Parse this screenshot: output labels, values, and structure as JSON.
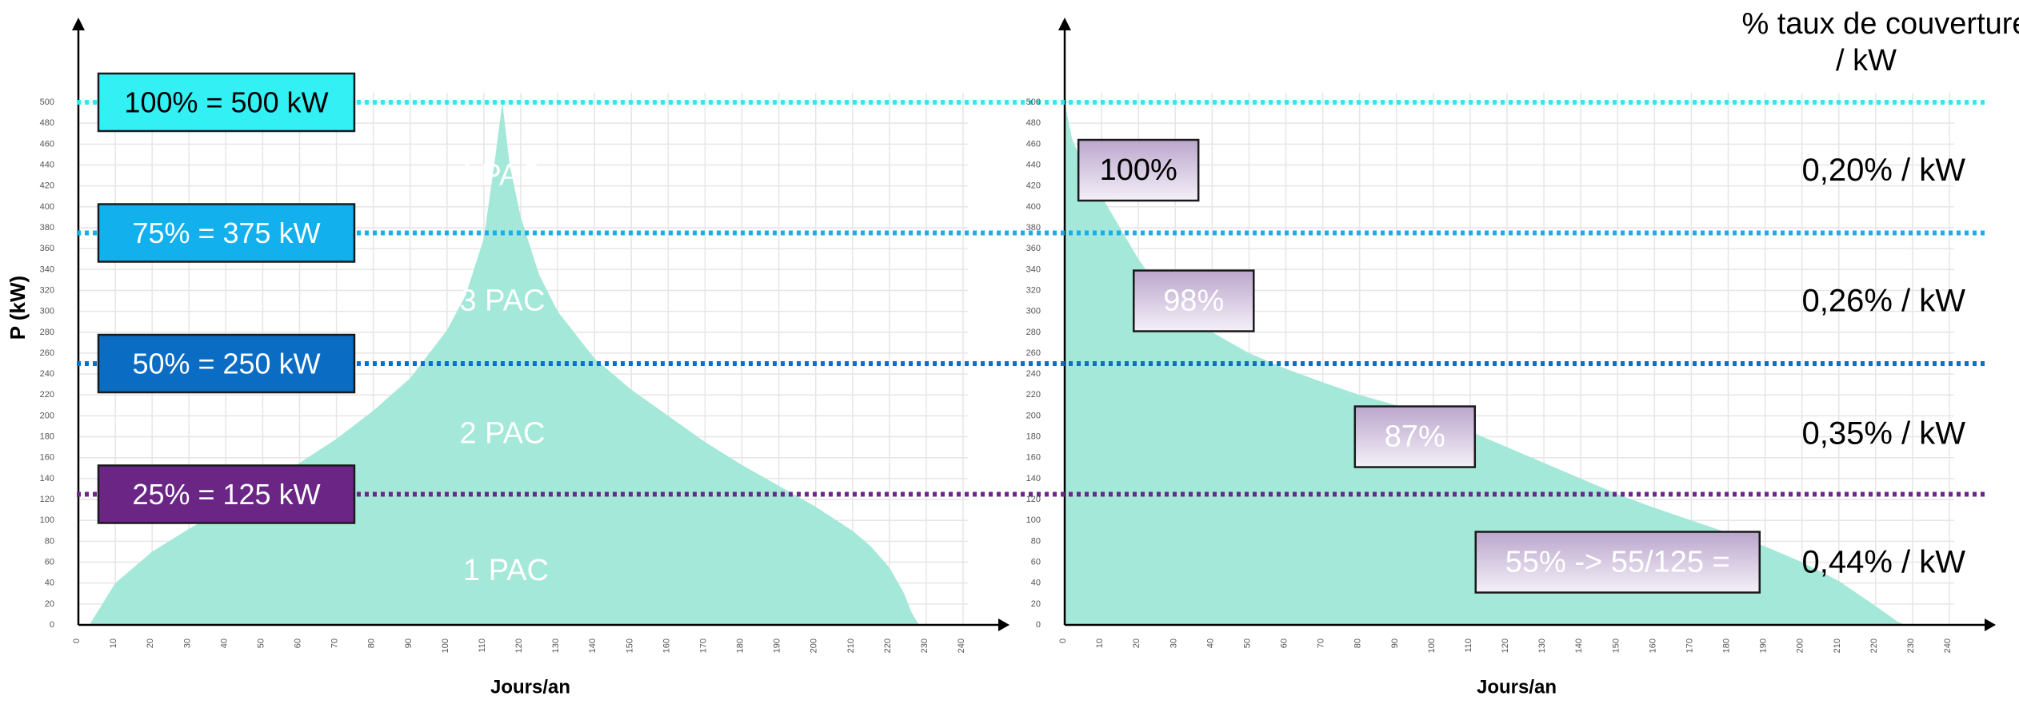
{
  "colors": {
    "area": "#a3e8d8",
    "grid": "#e6e6e6",
    "axis": "#000000",
    "line_100": "#33e6f2",
    "line_75": "#1aaee8",
    "line_50": "#0f6fc4",
    "line_25": "#6b2a86",
    "box_100": "#33f0f5",
    "box_75": "#12b0ec",
    "box_50": "#0a6cc2",
    "box_25": "#6a2585",
    "pct_box_top": "#bba6cc",
    "pct_box_bottom": "#f4f0f8"
  },
  "chart_data": [
    {
      "type": "area",
      "title": "",
      "xlabel": "Jours/an",
      "ylabel": "P (kW)",
      "xlim": [
        0,
        250
      ],
      "ylim": [
        0,
        500
      ],
      "x_ticks": [
        "0",
        "10",
        "20",
        "30",
        "40",
        "50",
        "60",
        "70",
        "80",
        "90",
        "100",
        "110",
        "120",
        "130",
        "140",
        "150",
        "160",
        "170",
        "180",
        "190",
        "200",
        "210",
        "220",
        "230",
        "240"
      ],
      "y_ticks": [
        "0",
        "20",
        "40",
        "60",
        "80",
        "100",
        "120",
        "140",
        "160",
        "180",
        "200",
        "220",
        "240",
        "260",
        "280",
        "300",
        "320",
        "340",
        "360",
        "380",
        "400",
        "420",
        "440",
        "460",
        "480",
        "500"
      ],
      "x": [
        3,
        10,
        20,
        30,
        40,
        50,
        60,
        70,
        80,
        90,
        100,
        105,
        110,
        113,
        115,
        117,
        120,
        125,
        130,
        140,
        150,
        160,
        170,
        180,
        190,
        200,
        210,
        215,
        220,
        224,
        226,
        228
      ],
      "y": [
        0,
        40,
        70,
        92,
        112,
        132,
        155,
        178,
        205,
        236,
        282,
        315,
        370,
        445,
        500,
        440,
        390,
        335,
        300,
        255,
        225,
        200,
        175,
        153,
        133,
        113,
        90,
        75,
        55,
        30,
        12,
        0
      ],
      "levels": [
        {
          "label": "100% = 500 kW",
          "value": 500
        },
        {
          "label": "75% = 375 kW",
          "value": 375
        },
        {
          "label": "50% = 250 kW",
          "value": 250
        },
        {
          "label": "25% = 125 kW",
          "value": 125
        }
      ],
      "annotations": [
        {
          "text": "4 PAC",
          "x": 114,
          "y": 430
        },
        {
          "text": "3 PAC",
          "x": 115,
          "y": 310
        },
        {
          "text": "2 PAC",
          "x": 115,
          "y": 183
        },
        {
          "text": "1 PAC",
          "x": 116,
          "y": 52
        }
      ]
    },
    {
      "type": "area",
      "title": "",
      "xlabel": "Jours/an",
      "ylabel": "",
      "xlim": [
        0,
        250
      ],
      "ylim": [
        0,
        500
      ],
      "x_ticks": [
        "0",
        "10",
        "20",
        "30",
        "40",
        "50",
        "60",
        "70",
        "80",
        "90",
        "100",
        "110",
        "120",
        "130",
        "140",
        "150",
        "160",
        "170",
        "180",
        "190",
        "200",
        "210",
        "220",
        "230",
        "240"
      ],
      "y_ticks": [
        "0",
        "20",
        "40",
        "60",
        "80",
        "100",
        "120",
        "140",
        "160",
        "180",
        "200",
        "220",
        "240",
        "260",
        "280",
        "300",
        "320",
        "340",
        "360",
        "380",
        "400",
        "420",
        "440",
        "460",
        "480",
        "500"
      ],
      "x": [
        0,
        2,
        5,
        10,
        15,
        20,
        25,
        30,
        40,
        50,
        60,
        70,
        80,
        90,
        100,
        110,
        120,
        130,
        140,
        150,
        160,
        170,
        180,
        190,
        200,
        210,
        215,
        220,
        224,
        226,
        228
      ],
      "y": [
        500,
        465,
        440,
        410,
        380,
        350,
        325,
        305,
        280,
        260,
        245,
        232,
        220,
        210,
        200,
        185,
        170,
        155,
        140,
        125,
        112,
        100,
        88,
        75,
        60,
        42,
        30,
        18,
        8,
        3,
        0
      ],
      "levels": [
        500,
        375,
        250,
        125
      ],
      "coverage_labels": [
        {
          "text": "100%",
          "x": 20,
          "y": 435
        },
        {
          "text": "98%",
          "x": 35,
          "y": 310
        },
        {
          "text": "87%",
          "x": 95,
          "y": 180
        },
        {
          "text": "55% -> 55/125 =",
          "x": 150,
          "y": 60
        }
      ],
      "right_header": [
        "% taux de couverture",
        "/ kW"
      ],
      "rates": [
        {
          "text": "0,20% / kW",
          "y": 435
        },
        {
          "text": "0,26% / kW",
          "y": 310
        },
        {
          "text": "0,35% / kW",
          "y": 183
        },
        {
          "text": "0,44% / kW",
          "y": 60
        }
      ]
    }
  ]
}
